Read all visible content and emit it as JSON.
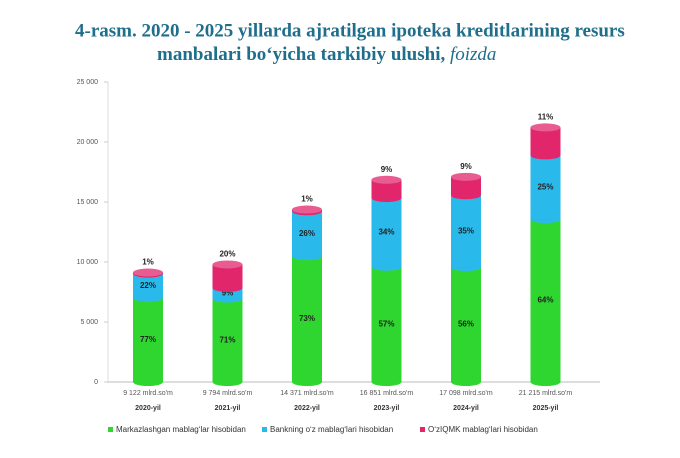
{
  "chart_data": {
    "type": "stacked-cylinder",
    "title": [
      "4-rasm. 2020 - 2025 yillarda ajratilgan ipoteka kreditlarining resurs",
      "manbalari bo‘yicha tarkibiy ulushi,"
    ],
    "title_unit": "foizda",
    "categories": [
      "2020-yil",
      "2021-yil",
      "2022-yil",
      "2023-yil",
      "2024-yil",
      "2025-yil"
    ],
    "total_labels": [
      "9 122 mlrd.so'm",
      "9 794 mlrd.so'm",
      "14 371 mlrd.so'm",
      "16 851 mlrd.so'm",
      "17 098 mlrd.so'm",
      "21 215 mlrd.so'm"
    ],
    "series": [
      {
        "name": "Markazlashgan mablagʻlar hisobidan",
        "color": "#2fd62f",
        "values": [
          7024,
          6954,
          10491,
          9605,
          9575,
          13578
        ],
        "value_labels": [
          "77%",
          "71%",
          "73%",
          "57%",
          "56%",
          "64%"
        ]
      },
      {
        "name": "Bankning oʻz mablagʻlari hisobidan",
        "color": "#29b9ea",
        "values": [
          2007,
          881,
          3736,
          5729,
          5984,
          5304
        ],
        "value_labels": [
          "22%",
          "9%",
          "26%",
          "34%",
          "35%",
          "25%"
        ]
      },
      {
        "name": "OʻzIQMK mablagʻlari hisobidan",
        "color": "#e2266c",
        "values": [
          91,
          1959,
          144,
          1517,
          1539,
          2334
        ],
        "value_labels": [
          "1%",
          "20%",
          "1%",
          "9%",
          "9%",
          "11%"
        ]
      }
    ],
    "ylim": [
      0,
      25000
    ],
    "yticks": [
      0,
      {
        "value": 5000,
        "label": "5 000"
      },
      {
        "value": 10000,
        "label": "10 000"
      },
      {
        "value": 15000,
        "label": "15 000"
      },
      {
        "value": 20000,
        "label": "20 000"
      },
      {
        "value": 25000,
        "label": "25 000"
      }
    ],
    "grid": false,
    "legend": "bottom"
  }
}
